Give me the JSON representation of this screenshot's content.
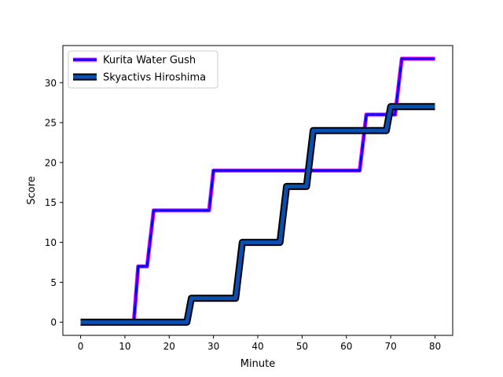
{
  "chart_data": {
    "type": "line",
    "xlabel": "Minute",
    "ylabel": "Score",
    "xlim": [
      -4,
      84
    ],
    "ylim": [
      -1.65,
      34.65
    ],
    "xticks": [
      0,
      10,
      20,
      30,
      40,
      50,
      60,
      70,
      80
    ],
    "yticks": [
      0,
      5,
      10,
      15,
      20,
      25,
      30
    ],
    "grid": false,
    "legend_position": "top-left",
    "series": [
      {
        "name": "Kurita Water Gush",
        "color": "#0000ff",
        "edge_color": "#ff00ff",
        "style": "step",
        "points": [
          [
            0,
            0
          ],
          [
            12,
            0
          ],
          [
            13,
            7
          ],
          [
            15,
            7
          ],
          [
            16.5,
            14
          ],
          [
            29,
            14
          ],
          [
            30,
            19
          ],
          [
            63,
            19
          ],
          [
            64.5,
            26
          ],
          [
            71,
            26
          ],
          [
            72.5,
            33
          ],
          [
            80,
            33
          ]
        ]
      },
      {
        "name": "Skyactivs Hiroshima",
        "color": "#0a4fb0",
        "edge_color": "#000000",
        "style": "step",
        "points": [
          [
            0,
            0
          ],
          [
            24,
            0
          ],
          [
            25,
            3
          ],
          [
            35,
            3
          ],
          [
            36.5,
            10
          ],
          [
            45,
            10
          ],
          [
            46.5,
            17
          ],
          [
            51,
            17
          ],
          [
            52.5,
            24
          ],
          [
            69,
            24
          ],
          [
            70,
            27
          ],
          [
            80,
            27
          ]
        ]
      }
    ]
  }
}
